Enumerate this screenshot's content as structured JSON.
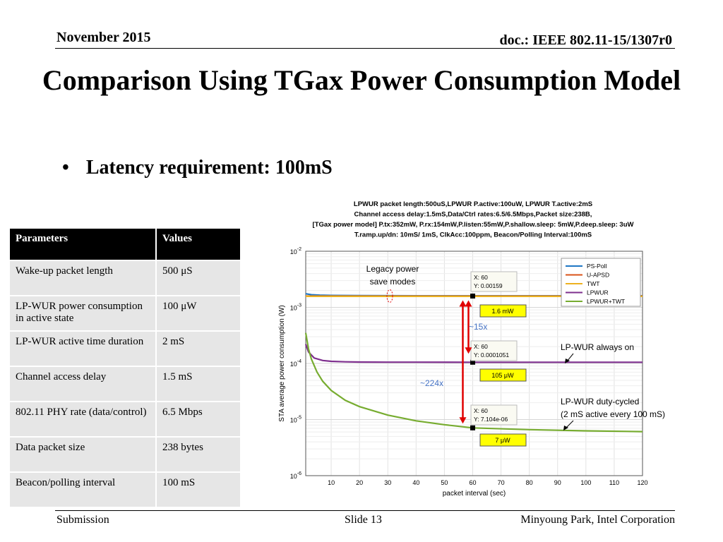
{
  "header": {
    "date": "November 2015",
    "doc": "doc.: IEEE 802.11-15/1307r0"
  },
  "title": "Comparison Using TGax Power Consumption Model",
  "bullet": "Latency requirement: 100mS",
  "table": {
    "headers": [
      "Parameters",
      "Values"
    ],
    "rows": [
      [
        "Wake-up packet length",
        "500 μS"
      ],
      [
        "LP-WUR power consumption in active state",
        "100 μW"
      ],
      [
        "LP-WUR active time duration",
        "2 mS"
      ],
      [
        "Channel access delay",
        "1.5 mS"
      ],
      [
        "802.11 PHY rate (data/control)",
        "6.5 Mbps"
      ],
      [
        "Data packet size",
        "238 bytes"
      ],
      [
        "Beacon/polling interval",
        "100 mS"
      ]
    ]
  },
  "footer": {
    "left": "Submission",
    "center": "Slide 13",
    "right": "Minyoung Park, Intel Corporation"
  },
  "chart_data": {
    "type": "line",
    "title_lines": [
      "LPWUR packet length:500uS,LPWUR P.active:100uW, LPWUR T.active:2mS",
      "Channel access delay:1.5mS,Data/Ctrl rates:6.5/6.5Mbps,Packet size:238B,",
      "[TGax power model] P.tx:352mW, P.rx:154mW,P.listen:55mW,P.shallow.sleep:  5mW,P.deep.sleep: 3uW",
      "T.ramp.up/dn: 10mS/  1mS, ClkAcc:100ppm, Beacon/Polling Interval:100mS"
    ],
    "xlabel": "packet interval (sec)",
    "ylabel": "STA average power consumption (W)",
    "xlim": [
      1,
      120
    ],
    "ylim": [
      1e-06,
      0.01
    ],
    "yscale": "log",
    "xticks": [
      10,
      20,
      30,
      40,
      50,
      60,
      70,
      80,
      90,
      100,
      110,
      120
    ],
    "yticks": [
      {
        "v": 0.01,
        "label": "10",
        "exp": "-2"
      },
      {
        "v": 0.001,
        "label": "10",
        "exp": "-3"
      },
      {
        "v": 0.0001,
        "label": "10",
        "exp": "-4"
      },
      {
        "v": 1e-05,
        "label": "10",
        "exp": "-5"
      },
      {
        "v": 1e-06,
        "label": "10",
        "exp": "-6"
      }
    ],
    "grid": true,
    "legend_position": "top-right",
    "series": [
      {
        "name": "PS-Poll",
        "color": "#1f77c4",
        "x": [
          1,
          3,
          6,
          10,
          20,
          40,
          60,
          80,
          100,
          120
        ],
        "y": [
          0.00175,
          0.00168,
          0.00165,
          0.00163,
          0.00162,
          0.00161,
          0.00161,
          0.00161,
          0.00161,
          0.00161
        ]
      },
      {
        "name": "U-APSD",
        "color": "#d95319",
        "x": [
          1,
          10,
          30,
          60,
          90,
          120
        ],
        "y": [
          0.00159,
          0.00159,
          0.00159,
          0.00159,
          0.00159,
          0.00159
        ]
      },
      {
        "name": "TWT",
        "color": "#edb120",
        "x": [
          1,
          10,
          30,
          60,
          90,
          120
        ],
        "y": [
          0.00157,
          0.00157,
          0.00157,
          0.00157,
          0.00157,
          0.00157
        ]
      },
      {
        "name": "LPWUR",
        "color": "#7e2f8e",
        "x": [
          1,
          2,
          4,
          7,
          10,
          15,
          20,
          30,
          40,
          60,
          80,
          100,
          120
        ],
        "y": [
          0.00022,
          0.00016,
          0.000125,
          0.000113,
          0.000109,
          0.000107,
          0.000106,
          0.0001055,
          0.0001053,
          0.0001051,
          0.000105,
          0.000105,
          0.000105
        ]
      },
      {
        "name": "LPWUR+TWT",
        "color": "#77ac30",
        "x": [
          1,
          2,
          3,
          5,
          7,
          10,
          15,
          20,
          30,
          40,
          50,
          60,
          80,
          100,
          120
        ],
        "y": [
          0.00035,
          0.00018,
          0.00012,
          7e-05,
          4.8e-05,
          3.3e-05,
          2.2e-05,
          1.7e-05,
          1.2e-05,
          9.5e-06,
          8.1e-06,
          7.104e-06,
          6.6e-06,
          6.3e-06,
          6.1e-06
        ]
      }
    ],
    "datatips": [
      {
        "x": 60,
        "y": 0.00159,
        "label_x": "X: 60",
        "label_y": "Y: 0.00159"
      },
      {
        "x": 60,
        "y": 0.0001051,
        "label_x": "X: 60",
        "label_y": "Y: 0.0001051"
      },
      {
        "x": 60,
        "y": 7.104e-06,
        "label_x": "X: 60",
        "label_y": "Y: 7.104e-06"
      }
    ],
    "value_boxes": [
      "1.6 mW",
      "105 μW",
      "7 μW"
    ],
    "ratios": [
      "~15x",
      "~224x"
    ],
    "annotations": {
      "legacy": [
        "Legacy power",
        "save modes"
      ],
      "always_on": "LP-WUR always on",
      "duty": [
        "LP-WUR duty-cycled",
        "(2 mS active every 100 mS)"
      ]
    }
  }
}
